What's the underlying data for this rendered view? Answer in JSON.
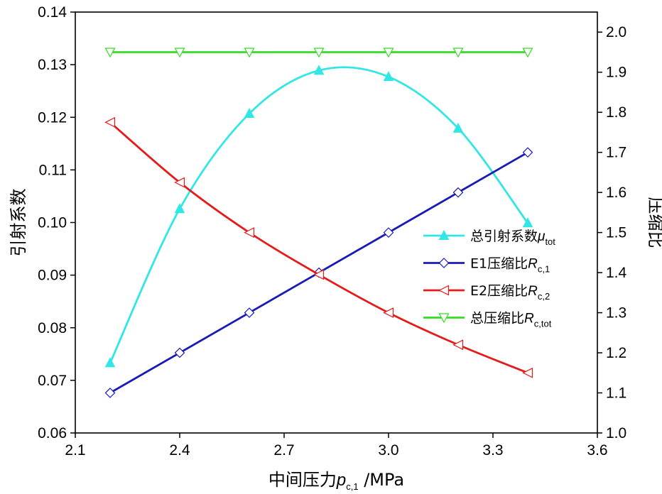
{
  "chart_data": {
    "type": "line",
    "x": [
      2.2,
      2.4,
      2.6,
      2.8,
      3.0,
      3.2,
      3.4
    ],
    "xlim": [
      2.1,
      3.6
    ],
    "xticks": [
      "2.1",
      "2.4",
      "2.7",
      "3.0",
      "3.3",
      "3.6"
    ],
    "ylim_left": [
      0.06,
      0.14
    ],
    "yticks_left": [
      "0.06",
      "0.07",
      "0.08",
      "0.09",
      "0.10",
      "0.11",
      "0.12",
      "0.13",
      "0.14"
    ],
    "ylim_right": [
      1.0,
      2.05
    ],
    "yticks_right": [
      "1.0",
      "1.1",
      "1.2",
      "1.3",
      "1.4",
      "1.5",
      "1.6",
      "1.7",
      "1.8",
      "1.9",
      "2.0"
    ],
    "xlabel": {
      "main": "中间压力",
      "var": "p",
      "sub": "c,1",
      "unit": " /MPa"
    },
    "ylabel_left": "引射系数",
    "ylabel_right": "压缩比",
    "series": [
      {
        "name": "总引射系数",
        "var": "μ",
        "sub": "tot",
        "axis": "left",
        "color": "#33e6e6",
        "marker": "triangle-up-filled",
        "smooth": true,
        "values": [
          0.0733,
          0.1026,
          0.1207,
          0.1289,
          0.1277,
          0.1179,
          0.0999
        ]
      },
      {
        "name": "E1压缩比",
        "var": "R",
        "sub": "c,1",
        "axis": "right",
        "color": "#1a1ab8",
        "marker": "diamond-open",
        "smooth": false,
        "values": [
          1.1,
          1.2,
          1.3,
          1.4,
          1.5,
          1.6,
          1.7
        ]
      },
      {
        "name": "E2压缩比",
        "var": "R",
        "sub": "c,2",
        "axis": "right",
        "color": "#e61a1a",
        "marker": "triangle-left-open",
        "smooth": true,
        "values": [
          1.775,
          1.625,
          1.5,
          1.395,
          1.3,
          1.22,
          1.15
        ]
      },
      {
        "name": "总压缩比",
        "var": "R",
        "sub": "c,tot",
        "axis": "right",
        "color": "#33dd22",
        "marker": "triangle-down-open",
        "smooth": false,
        "values": [
          1.95,
          1.95,
          1.95,
          1.95,
          1.95,
          1.95,
          1.95
        ]
      }
    ],
    "legend_position": "center-right"
  }
}
